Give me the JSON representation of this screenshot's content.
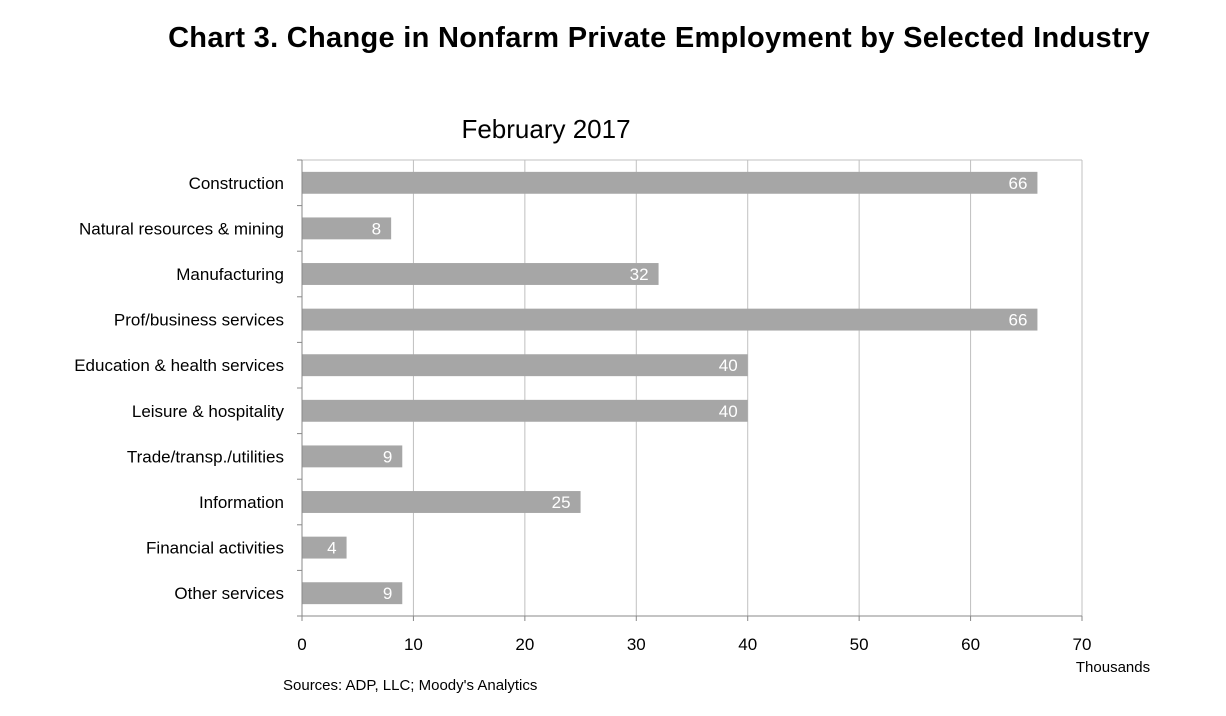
{
  "chart_data": {
    "type": "bar",
    "orientation": "horizontal",
    "title": "Chart 3. Change in Nonfarm Private Employment by Selected Industry",
    "subtitle": "February 2017",
    "categories": [
      "Construction",
      "Natural resources & mining",
      "Manufacturing",
      "Prof/business services",
      "Education & health services",
      "Leisure & hospitality",
      "Trade/transp./utilities",
      "Information",
      "Financial activities",
      "Other services"
    ],
    "values": [
      66,
      8,
      32,
      66,
      40,
      40,
      9,
      25,
      4,
      9
    ],
    "value_labels": [
      "66",
      "8",
      "32",
      "66",
      "40",
      "40",
      "9",
      "25",
      "4",
      "9"
    ],
    "xlim": [
      0,
      70
    ],
    "xticks": [
      "0",
      "10",
      "20",
      "30",
      "40",
      "50",
      "60",
      "70"
    ],
    "xlabel": "Thousands",
    "ylabel": "",
    "grid": true,
    "legend": "none",
    "bar_color": "#a6a6a6",
    "grid_color": "#c0c0c0",
    "source": "Sources: ADP, LLC; Moody's Analytics"
  }
}
